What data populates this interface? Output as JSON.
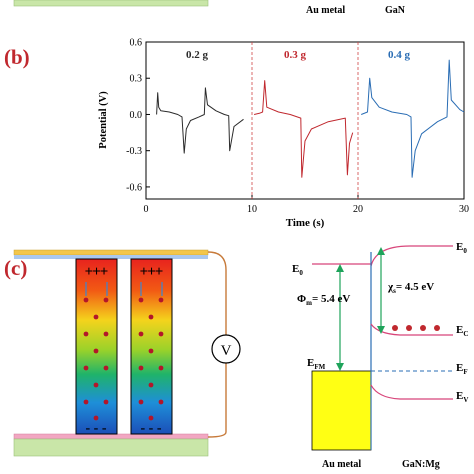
{
  "panel_a": {
    "left_caption": "Au metal",
    "right_caption": "GaN"
  },
  "panel_b": {
    "label": "(b)",
    "ylabel": "Potential (V)",
    "xlabel": "Time (s)",
    "y_ticks": [
      "0.6",
      "0.3",
      "0.0",
      "-0.3",
      "-0.6"
    ],
    "x_ticks": [
      "0",
      "10",
      "20",
      "30"
    ],
    "segments": [
      {
        "label": "0.2 g",
        "color": "#2b2b2b"
      },
      {
        "label": "0.3 g",
        "color": "#c0282e"
      },
      {
        "label": "0.4 g",
        "color": "#2a6db4"
      }
    ]
  },
  "chart_data": {
    "type": "line",
    "title": "",
    "xlabel": "Time (s)",
    "ylabel": "Potential (V)",
    "xlim": [
      0,
      30
    ],
    "ylim": [
      -0.7,
      0.6
    ],
    "grid": false,
    "legend": "none",
    "dividers_x": [
      10,
      20
    ],
    "series": [
      {
        "name": "0.2 g",
        "color": "#2b2b2b",
        "x": [
          1.0,
          1.1,
          1.2,
          1.4,
          2.2,
          3.0,
          3.4,
          3.6,
          3.8,
          4.2,
          5.0,
          5.5,
          5.6,
          5.8,
          6.6,
          7.4,
          7.8,
          7.9,
          8.3,
          9.2
        ],
        "y": [
          0.0,
          0.18,
          0.06,
          0.03,
          0.02,
          0.0,
          -0.02,
          -0.32,
          -0.12,
          -0.05,
          -0.02,
          0.0,
          0.22,
          0.08,
          0.03,
          0.0,
          -0.01,
          -0.3,
          -0.1,
          -0.04
        ]
      },
      {
        "name": "0.3 g",
        "color": "#c0282e",
        "x": [
          10.2,
          10.7,
          11.0,
          11.2,
          11.4,
          12.5,
          13.6,
          14.6,
          14.7,
          15.0,
          15.6,
          17.2,
          18.8,
          19.0,
          19.2,
          19.5
        ],
        "y": [
          0.0,
          0.01,
          0.02,
          0.28,
          0.06,
          0.02,
          0.0,
          -0.03,
          -0.52,
          -0.22,
          -0.12,
          -0.06,
          -0.03,
          -0.5,
          -0.24,
          -0.15
        ]
      },
      {
        "name": "0.4 g",
        "color": "#2a6db4",
        "x": [
          20.3,
          20.9,
          21.1,
          21.3,
          22.0,
          23.2,
          24.6,
          25.0,
          25.1,
          25.4,
          26.0,
          27.5,
          28.4,
          28.6,
          28.8,
          29.6,
          30.0
        ],
        "y": [
          0.0,
          0.02,
          0.3,
          0.14,
          0.06,
          0.02,
          0.0,
          -0.02,
          -0.52,
          -0.3,
          -0.16,
          -0.06,
          -0.02,
          0.45,
          0.12,
          0.04,
          0.02
        ]
      }
    ]
  },
  "panel_c": {
    "label": "(c)",
    "voltmeter": "V",
    "E0_left": "E",
    "E0_left_sub": "0",
    "E0_right": "E",
    "E0_right_sub": "0",
    "Ec": "E",
    "Ec_sub": "C",
    "Ef": "E",
    "Ef_sub": "F",
    "Ev": "E",
    "Ev_sub": "V",
    "Efm": "E",
    "Efm_sub": "FM",
    "phi": "Φ",
    "phi_sub": "m",
    "phi_val": "= 5.4 eV",
    "chi": "χ",
    "chi_sub": "s",
    "chi_val": "= 4.5 eV",
    "left_caption": "Au metal",
    "right_caption": "GaN:Mg",
    "plus": "+++",
    "minus": "- - -"
  }
}
